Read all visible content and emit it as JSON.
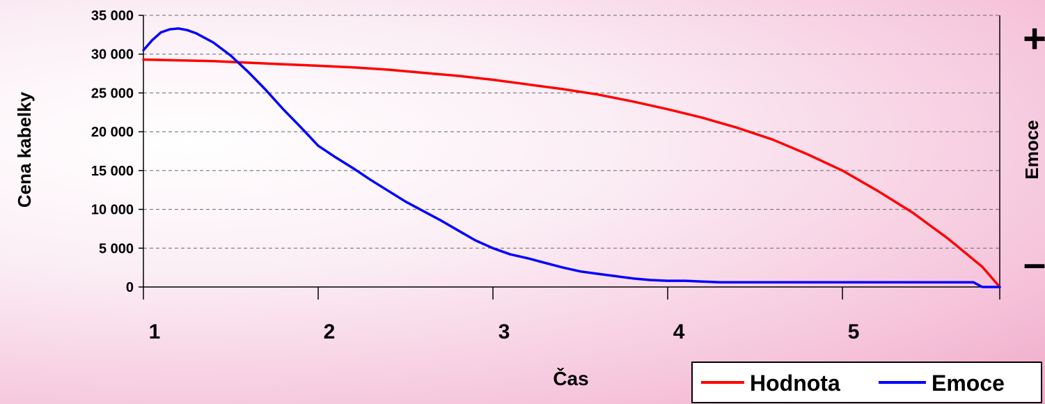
{
  "chart_data": {
    "type": "line",
    "xlabel": "Čas",
    "ylabel": "Cena kabelky",
    "y2label": "Emoce",
    "y2_top_symbol": "+",
    "y2_bottom_symbol": "–",
    "xlim": [
      1,
      5.9
    ],
    "ylim": [
      0,
      35000
    ],
    "x_ticks": [
      "1",
      "2",
      "3",
      "4",
      "5"
    ],
    "y_ticks": [
      "0",
      "5 000",
      "10 000",
      "15 000",
      "20 000",
      "25 000",
      "30 000",
      "35 000"
    ],
    "grid": "horizontal-dashed",
    "legend_position": "bottom-right",
    "series": [
      {
        "name": "Hodnota",
        "color": "#ff0000",
        "x": [
          1.0,
          1.2,
          1.4,
          1.6,
          1.8,
          2.0,
          2.2,
          2.4,
          2.6,
          2.8,
          3.0,
          3.2,
          3.4,
          3.6,
          3.8,
          4.0,
          4.2,
          4.4,
          4.6,
          4.8,
          5.0,
          5.2,
          5.4,
          5.6,
          5.8,
          5.9
        ],
        "y": [
          29300,
          29200,
          29100,
          28900,
          28700,
          28500,
          28300,
          28000,
          27600,
          27200,
          26700,
          26100,
          25500,
          24800,
          23900,
          22900,
          21800,
          20500,
          19000,
          17100,
          15000,
          12400,
          9600,
          6300,
          2600,
          0
        ]
      },
      {
        "name": "Emoce",
        "color": "#0000ff",
        "x": [
          1.0,
          1.05,
          1.1,
          1.15,
          1.2,
          1.25,
          1.3,
          1.4,
          1.5,
          1.6,
          1.7,
          1.8,
          1.9,
          2.0,
          2.1,
          2.2,
          2.3,
          2.4,
          2.5,
          2.6,
          2.7,
          2.8,
          2.9,
          3.0,
          3.1,
          3.2,
          3.3,
          3.4,
          3.5,
          3.6,
          3.7,
          3.8,
          3.9,
          4.0,
          4.1,
          4.2,
          4.3,
          4.4,
          4.5,
          4.6,
          5.0,
          5.4,
          5.75,
          5.8,
          5.85,
          5.9
        ],
        "y": [
          30500,
          31800,
          32800,
          33200,
          33300,
          33100,
          32700,
          31500,
          29800,
          27700,
          25400,
          22900,
          20600,
          18200,
          16700,
          15300,
          13800,
          12400,
          11000,
          9800,
          8600,
          7300,
          6000,
          5000,
          4200,
          3700,
          3100,
          2500,
          2000,
          1700,
          1400,
          1100,
          900,
          800,
          800,
          700,
          600,
          600,
          600,
          600,
          600,
          600,
          600,
          0,
          0,
          0
        ]
      }
    ]
  }
}
